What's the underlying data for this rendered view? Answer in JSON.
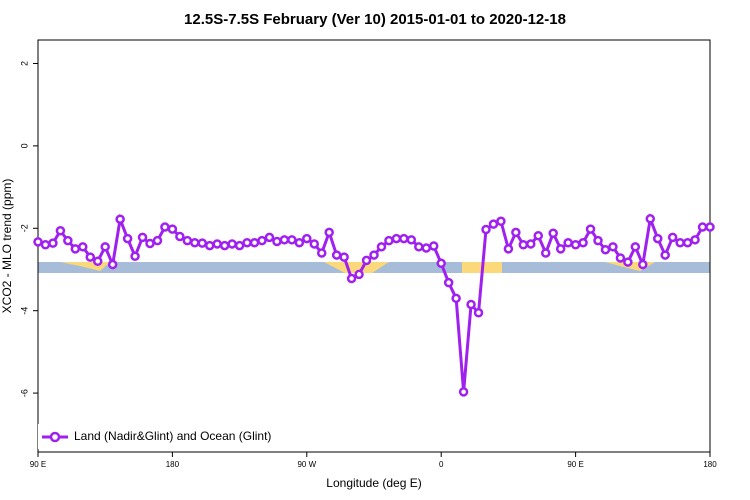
{
  "chart_data": {
    "type": "line",
    "title": "12.5S-7.5S February (Ver 10)   2015-01-01 to 2020-12-18",
    "xlabel": "Longitude (deg E)",
    "ylabel": "XCO2 - MLO trend (ppm)",
    "xlim": [
      90,
      540
    ],
    "ylim": [
      -7.43,
      2.57
    ],
    "xticks": [
      {
        "value": 90,
        "label": "90 E"
      },
      180,
      {
        "value": 270,
        "label": "90 W"
      },
      {
        "value": 360,
        "label": "0"
      },
      {
        "value": 450,
        "label": "90 E"
      },
      {
        "value": 540,
        "label": "180"
      }
    ],
    "yticks": [
      2,
      0,
      -2,
      -4,
      -6
    ],
    "legend": "bottom-left",
    "x": [
      90,
      95,
      100,
      105,
      110,
      115,
      120,
      125,
      130,
      135,
      140,
      145,
      150,
      155,
      160,
      165,
      170,
      175,
      180,
      185,
      190,
      195,
      200,
      205,
      210,
      215,
      220,
      225,
      230,
      235,
      240,
      245,
      250,
      255,
      260,
      265,
      270,
      275,
      280,
      285,
      290,
      295,
      300,
      305,
      310,
      315,
      320,
      325,
      330,
      335,
      340,
      345,
      350,
      355,
      360,
      365,
      370,
      375,
      380,
      385,
      390,
      395,
      400,
      405,
      410,
      415,
      420,
      425,
      430,
      435,
      440,
      445,
      450,
      455,
      460,
      465,
      470,
      475,
      480,
      485,
      490,
      495,
      500,
      505,
      510,
      515,
      520,
      525,
      530,
      535,
      540
    ],
    "series": [
      {
        "name": "Land (Nadir&Glint) and Ocean (Glint)",
        "color": "#a020f0",
        "values": [
          -2.33,
          -2.4,
          -2.36,
          -2.06,
          -2.3,
          -2.5,
          -2.45,
          -2.7,
          -2.8,
          -2.45,
          -2.88,
          -1.78,
          -2.25,
          -2.68,
          -2.22,
          -2.37,
          -2.3,
          -1.97,
          -2.02,
          -2.2,
          -2.3,
          -2.35,
          -2.36,
          -2.42,
          -2.38,
          -2.42,
          -2.38,
          -2.42,
          -2.35,
          -2.35,
          -2.3,
          -2.22,
          -2.32,
          -2.28,
          -2.28,
          -2.35,
          -2.25,
          -2.38,
          -2.6,
          -2.1,
          -2.65,
          -2.7,
          -3.22,
          -3.12,
          -2.78,
          -2.65,
          -2.45,
          -2.3,
          -2.25,
          -2.25,
          -2.28,
          -2.45,
          -2.48,
          -2.43,
          -2.85,
          -3.32,
          -3.7,
          -5.97,
          -3.85,
          -4.05,
          -2.03,
          -1.9,
          -1.83,
          -2.5,
          -2.1,
          -2.4,
          -2.38,
          -2.18,
          -2.6,
          -2.12,
          -2.5,
          -2.35,
          -2.4,
          -2.35,
          -2.02,
          -2.3,
          -2.52,
          -2.45,
          -2.72,
          -2.82,
          -2.45,
          -2.88,
          -1.77,
          -2.25,
          -2.65,
          -2.22,
          -2.35,
          -2.35,
          -2.28,
          -1.97,
          -1.97
        ]
      }
    ]
  }
}
